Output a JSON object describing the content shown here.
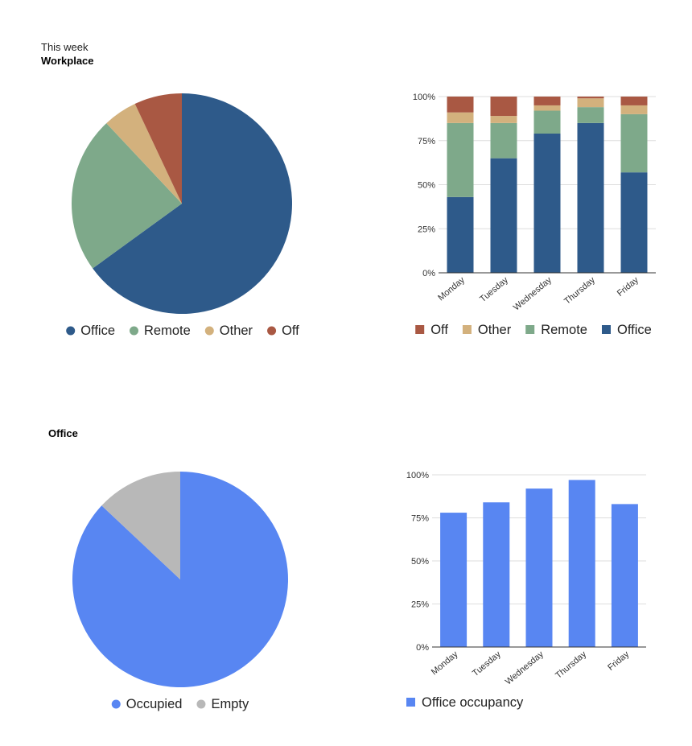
{
  "header": {
    "week_label": "This week",
    "workplace_title": "Workplace"
  },
  "office_section": {
    "title": "Office"
  },
  "colors": {
    "office": "#2e5a8a",
    "remote": "#7ea98a",
    "other": "#d3b17d",
    "off": "#a95843",
    "occupied": "#5886f2",
    "empty": "#b8b8b8",
    "grid": "#dddddd",
    "axis": "#333333"
  },
  "chart_data": [
    {
      "type": "pie",
      "title": "Workplace",
      "slices": [
        {
          "label": "Office",
          "value": 65,
          "color": "#2e5a8a"
        },
        {
          "label": "Remote",
          "value": 23,
          "color": "#7ea98a"
        },
        {
          "label": "Other",
          "value": 5,
          "color": "#d3b17d"
        },
        {
          "label": "Off",
          "value": 7,
          "color": "#a95843"
        }
      ],
      "legend": "bottom"
    },
    {
      "type": "bar",
      "stacked": true,
      "percent": true,
      "categories": [
        "Monday",
        "Tuesday",
        "Wednesday",
        "Thursday",
        "Friday"
      ],
      "series": [
        {
          "name": "Office",
          "values": [
            43,
            65,
            79,
            85,
            57
          ],
          "color": "#2e5a8a"
        },
        {
          "name": "Remote",
          "values": [
            42,
            20,
            13,
            9,
            33
          ],
          "color": "#7ea98a"
        },
        {
          "name": "Other",
          "values": [
            6,
            4,
            3,
            5,
            5
          ],
          "color": "#d3b17d"
        },
        {
          "name": "Off",
          "values": [
            9,
            11,
            5,
            1,
            5
          ],
          "color": "#a95843"
        }
      ],
      "legend_order": [
        "Off",
        "Other",
        "Remote",
        "Office"
      ],
      "yticks": [
        "0%",
        "25%",
        "50%",
        "75%",
        "100%"
      ],
      "ylim": [
        0,
        100
      ],
      "grid": true,
      "legend": "bottom"
    },
    {
      "type": "pie",
      "title": "Office",
      "slices": [
        {
          "label": "Occupied",
          "value": 87,
          "color": "#5886f2"
        },
        {
          "label": "Empty",
          "value": 13,
          "color": "#b8b8b8"
        }
      ],
      "legend": "bottom"
    },
    {
      "type": "bar",
      "categories": [
        "Monday",
        "Tuesday",
        "Wednesday",
        "Thursday",
        "Friday"
      ],
      "series": [
        {
          "name": "Office occupancy",
          "values": [
            78,
            84,
            92,
            97,
            83
          ],
          "color": "#5886f2"
        }
      ],
      "yticks": [
        "0%",
        "25%",
        "50%",
        "75%",
        "100%"
      ],
      "ylim": [
        0,
        100
      ],
      "grid": true,
      "legend": "bottom"
    }
  ]
}
